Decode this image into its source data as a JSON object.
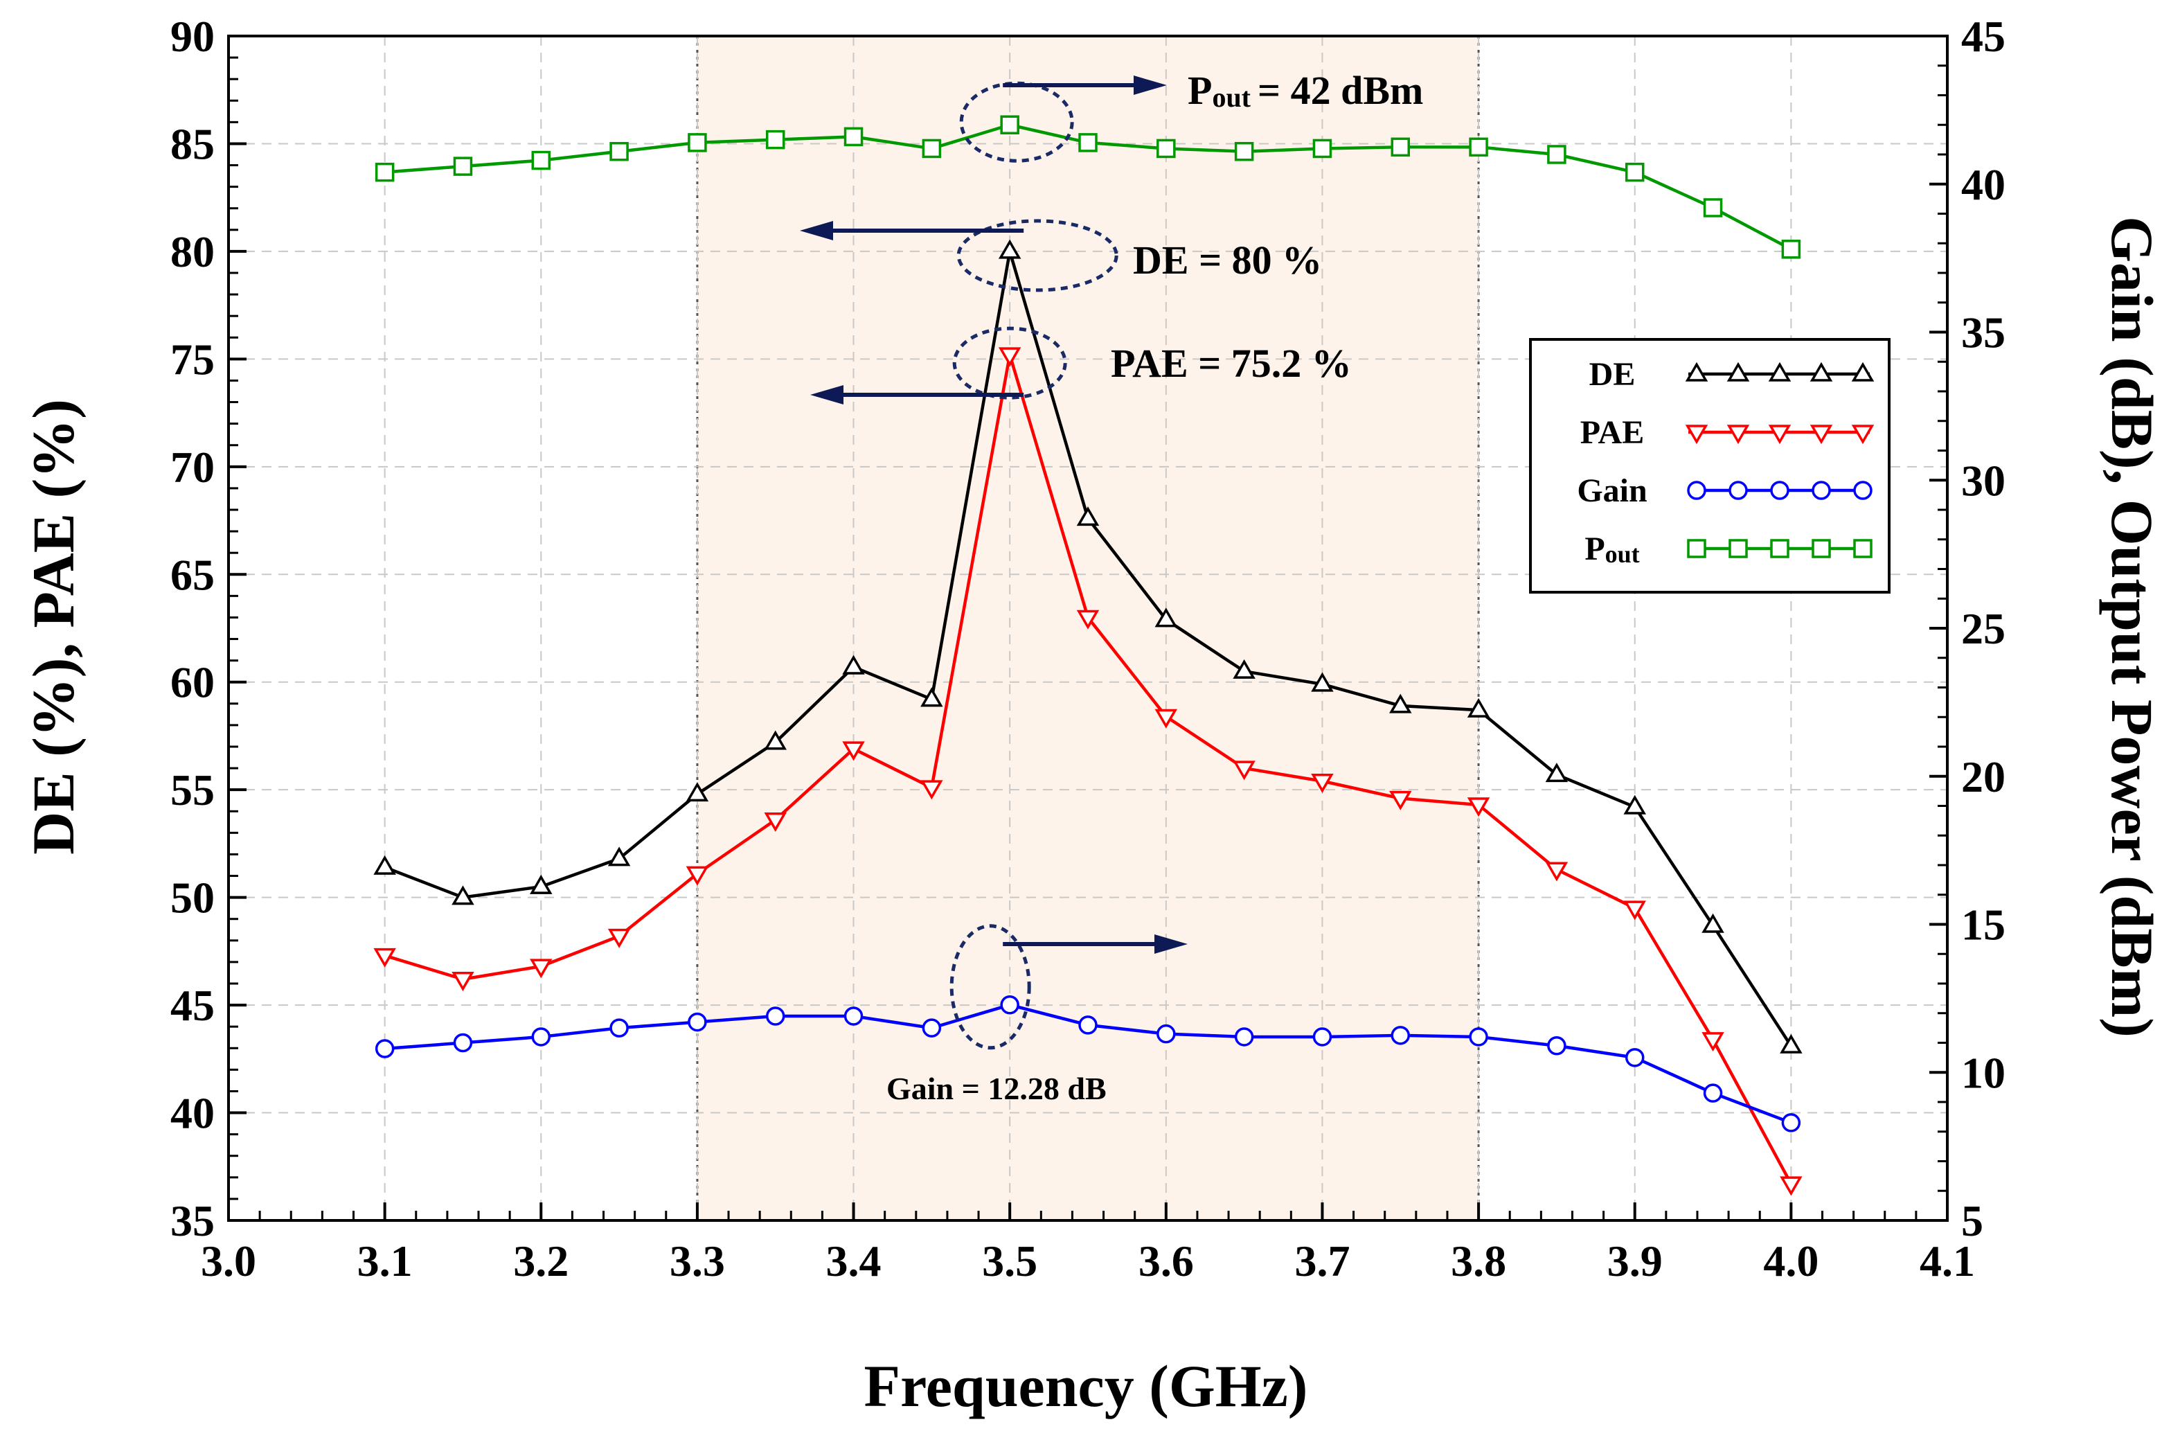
{
  "chart_data": {
    "type": "line",
    "xlabel": "Frequency (GHz)",
    "ylabel_left": "DE (%), PAE (%)",
    "ylabel_right": "Gain (dB), Output Power (dBm)",
    "xlim": [
      3.0,
      4.1
    ],
    "ylim_left": [
      35,
      90
    ],
    "ylim_right": [
      5,
      45
    ],
    "x_ticks": [
      "3.0",
      "3.1",
      "3.2",
      "3.3",
      "3.4",
      "3.5",
      "3.6",
      "3.7",
      "3.8",
      "3.9",
      "4.0",
      "4.1"
    ],
    "y_ticks_left": [
      "35",
      "40",
      "45",
      "50",
      "55",
      "60",
      "65",
      "70",
      "75",
      "80",
      "85",
      "90"
    ],
    "y_ticks_right": [
      "5",
      "10",
      "15",
      "20",
      "25",
      "30",
      "35",
      "40",
      "45"
    ],
    "grid": true,
    "legend_position": "right",
    "shaded_band": {
      "x_from": 3.3,
      "x_to": 3.8,
      "color": "#fdf3ea"
    },
    "x": [
      3.1,
      3.15,
      3.2,
      3.25,
      3.3,
      3.35,
      3.4,
      3.45,
      3.5,
      3.55,
      3.6,
      3.65,
      3.7,
      3.75,
      3.8,
      3.85,
      3.9,
      3.95,
      4.0
    ],
    "series": [
      {
        "name": "DE",
        "axis": "left",
        "color": "#000000",
        "marker": "triangle-up",
        "values": [
          51.4,
          50.0,
          50.5,
          51.8,
          54.8,
          57.2,
          60.7,
          59.2,
          80.0,
          67.6,
          62.9,
          60.5,
          59.9,
          58.9,
          58.7,
          55.7,
          54.2,
          48.7,
          43.1
        ]
      },
      {
        "name": "PAE",
        "axis": "left",
        "color": "#ff0000",
        "marker": "triangle-down",
        "values": [
          47.3,
          46.2,
          46.8,
          48.2,
          51.1,
          53.6,
          56.9,
          55.1,
          75.2,
          63.0,
          58.4,
          56.0,
          55.4,
          54.6,
          54.3,
          51.3,
          49.5,
          43.4,
          36.7
        ]
      },
      {
        "name": "Gain",
        "axis": "right",
        "color": "#0000ff",
        "marker": "circle",
        "values": [
          10.8,
          11.0,
          11.2,
          11.5,
          11.7,
          11.9,
          11.9,
          11.5,
          12.28,
          11.6,
          11.3,
          11.2,
          11.2,
          11.25,
          11.2,
          10.9,
          10.5,
          9.3,
          8.3
        ]
      },
      {
        "name": "Pout",
        "name_main": "P",
        "name_sub": "out",
        "axis": "right",
        "color": "#009900",
        "marker": "square",
        "values": [
          40.4,
          40.6,
          40.8,
          41.1,
          41.4,
          41.5,
          41.6,
          41.2,
          42.0,
          41.4,
          41.2,
          41.1,
          41.2,
          41.25,
          41.25,
          41.0,
          40.4,
          39.2,
          37.8
        ]
      }
    ],
    "annotations": {
      "pout_main": "P",
      "pout_sub": "out",
      "pout_value": "= 42 dBm",
      "de": "DE = 80 %",
      "pae": "PAE = 75.2 %",
      "gain": "Gain = 12.28 dB"
    },
    "colors": {
      "arrow": "#0d1a55",
      "ellipse": "#1a2a66",
      "grid": "#c8c8c8",
      "band_border": "#555555"
    }
  }
}
